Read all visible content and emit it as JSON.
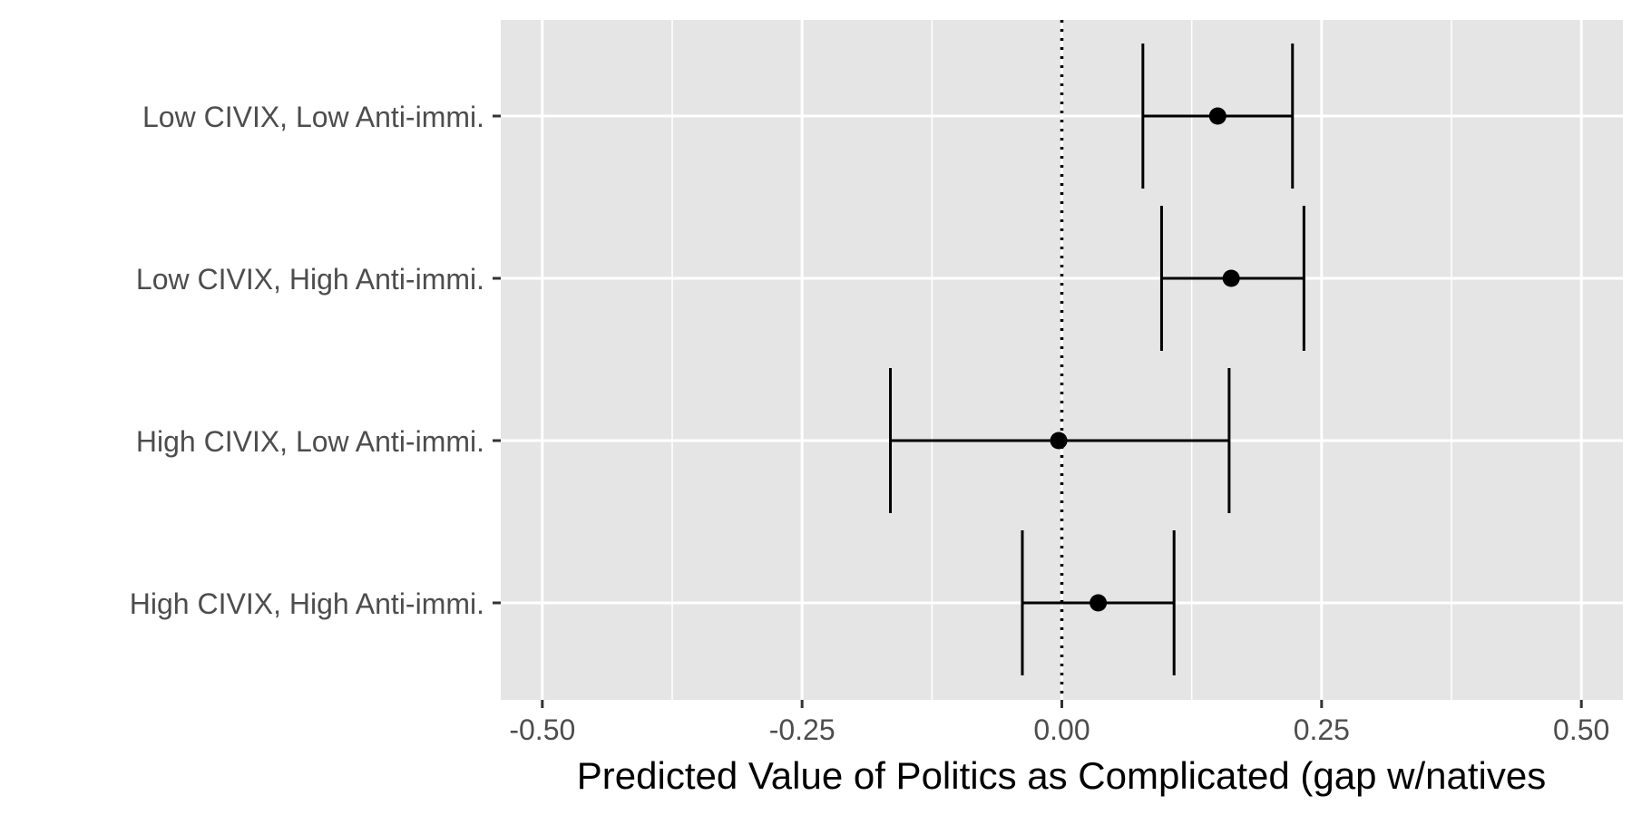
{
  "chart_data": {
    "type": "errorbar",
    "xlabel": "Predicted Value of Politics as Complicated (gap w/natives",
    "ylabel": "",
    "xlim": [
      -0.54,
      0.54
    ],
    "x_ticks": [
      -0.5,
      -0.25,
      0.0,
      0.25,
      0.5
    ],
    "x_tick_labels": [
      "-0.50",
      "-0.25",
      "0.00",
      "0.25",
      "0.50"
    ],
    "x_minor_ticks": [
      -0.375,
      -0.125,
      0.125,
      0.375
    ],
    "reference_line": {
      "x": 0.0,
      "style": "dotted"
    },
    "categories": [
      "Low CIVIX, Low Anti-immi.",
      "Low CIVIX, High Anti-immi.",
      "High CIVIX, Low Anti-immi.",
      "High CIVIX, High Anti-immi."
    ],
    "estimates": [
      0.15,
      0.163,
      -0.003,
      0.035
    ],
    "lower": [
      0.078,
      0.096,
      -0.165,
      -0.038
    ],
    "upper": [
      0.222,
      0.233,
      0.161,
      0.108
    ],
    "grid": true,
    "panel_background": "#e5e5e5",
    "grid_color": "#ffffff",
    "mark_color": "#000000"
  }
}
